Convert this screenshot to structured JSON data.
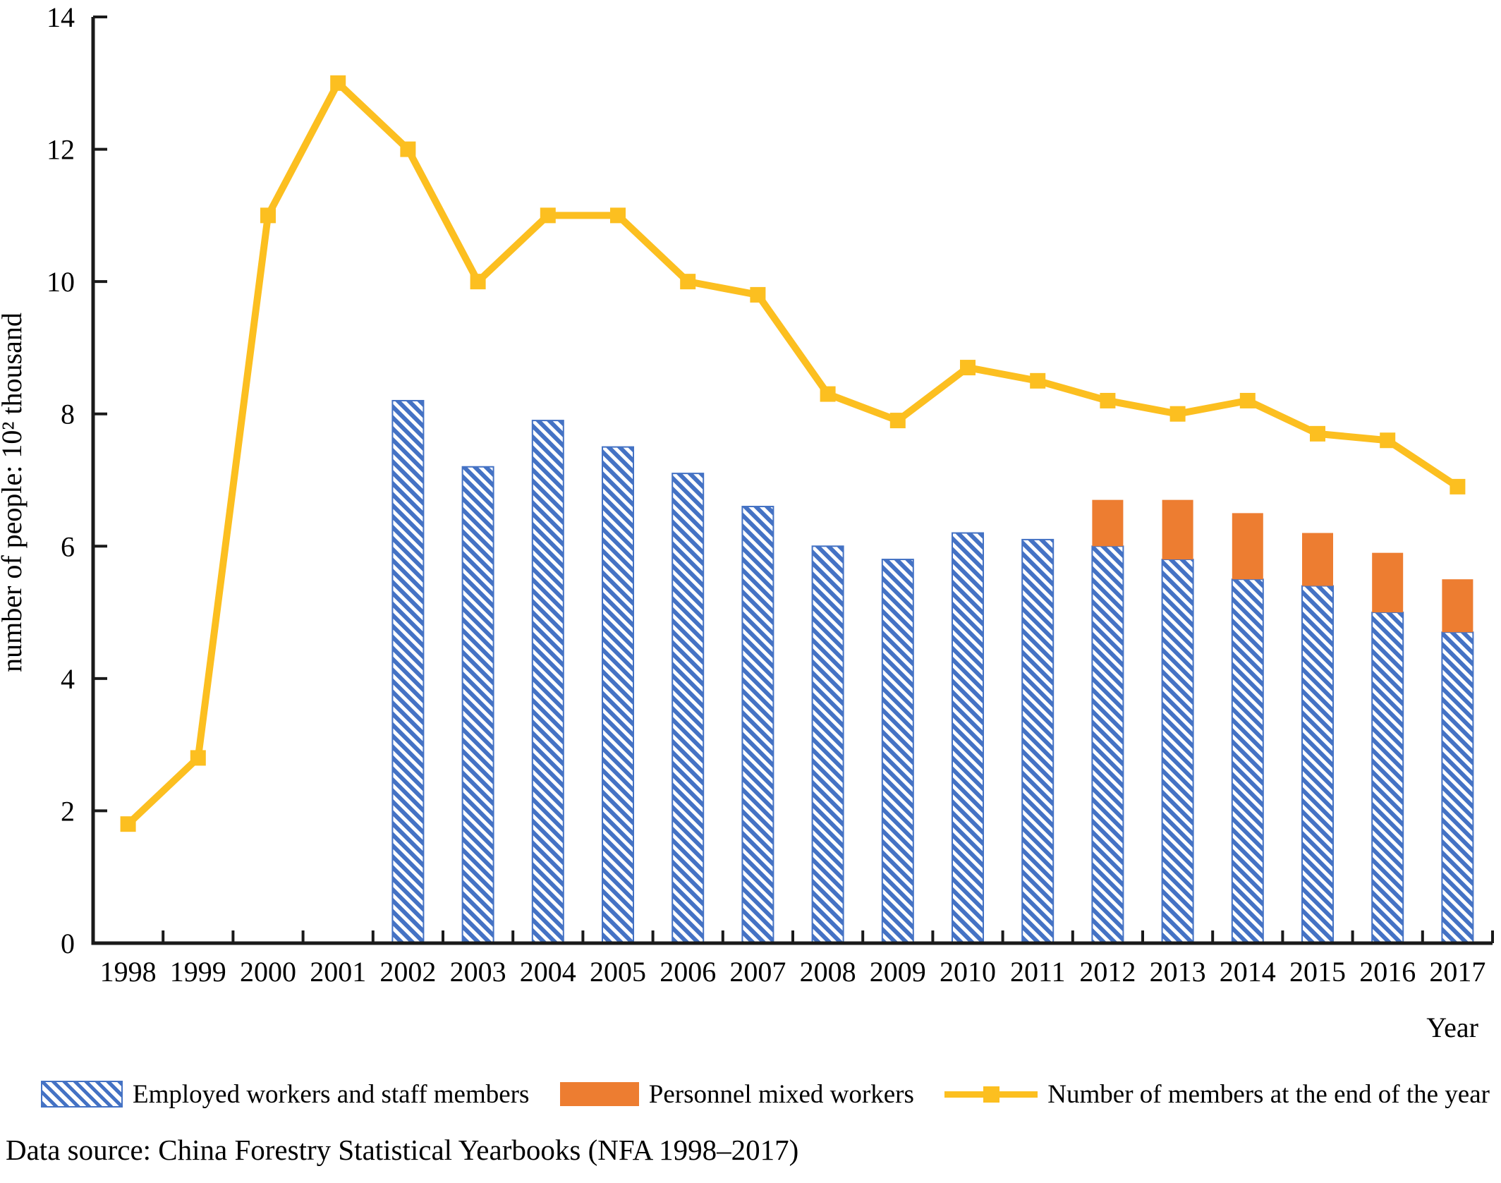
{
  "figure": {
    "y_axis_label": "number of people: 10² thousand",
    "x_axis_label": "Year",
    "source_note": "Data source: China Forestry Statistical Yearbooks (NFA 1998–2017)",
    "legend": [
      {
        "label": "Employed workers and staff members",
        "swatch": "blue-hatched-bar"
      },
      {
        "label": "Personnel mixed workers",
        "swatch": "orange-solid-bar"
      },
      {
        "label": "Number of members at the end of the year",
        "swatch": "yellow-line-square-marker"
      }
    ]
  },
  "colors": {
    "bar_blue": "#4472c4",
    "bar_orange": "#ed7d31",
    "line_yellow": "#fcbf20",
    "axis": "#1a1a1a"
  },
  "chart_data": {
    "type": "bar",
    "title": "",
    "xlabel": "Year",
    "ylabel": "number of people: 10² thousand",
    "categories": [
      "1998",
      "1999",
      "2000",
      "2001",
      "2002",
      "2003",
      "2004",
      "2005",
      "2006",
      "2007",
      "2008",
      "2009",
      "2010",
      "2011",
      "2012",
      "2013",
      "2014",
      "2015",
      "2016",
      "2017"
    ],
    "y_ticks": [
      0,
      2,
      4,
      6,
      8,
      10,
      12,
      14
    ],
    "ylim": [
      0,
      14
    ],
    "grid": false,
    "legend_position": "bottom",
    "series": [
      {
        "name": "Employed workers and staff members",
        "type": "bar",
        "style": "hatched-blue",
        "values": [
          null,
          null,
          null,
          null,
          8.2,
          7.2,
          7.9,
          7.5,
          7.1,
          6.6,
          6.0,
          5.8,
          6.2,
          6.1,
          6.0,
          5.8,
          5.5,
          5.4,
          5.0,
          4.7
        ]
      },
      {
        "name": "Personnel mixed workers",
        "type": "bar",
        "stacked_on": "Employed workers and staff members",
        "style": "solid-orange",
        "values": [
          null,
          null,
          null,
          null,
          null,
          null,
          null,
          null,
          null,
          null,
          null,
          null,
          null,
          null,
          0.7,
          0.9,
          1.0,
          0.8,
          0.9,
          0.8
        ]
      },
      {
        "name": "Number of members at the end of the year",
        "type": "line",
        "style": "yellow-square-markers",
        "values": [
          1.8,
          2.8,
          11.0,
          13.0,
          12.0,
          10.0,
          11.0,
          11.0,
          10.0,
          9.8,
          8.3,
          7.9,
          8.7,
          8.5,
          8.2,
          8.0,
          8.2,
          7.7,
          7.6,
          6.9
        ]
      }
    ]
  }
}
